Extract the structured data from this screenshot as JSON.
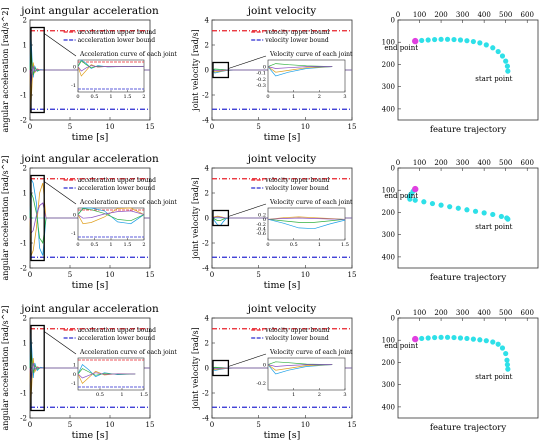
{
  "colors": {
    "upper": "#e8202a",
    "lower": "#2a2ad0",
    "joint": [
      "#1ea0e6",
      "#e0a020",
      "#30b040",
      "#8a50c0",
      "#606060",
      "#40c8c8"
    ],
    "feature": "#2ee0e8",
    "start_marker": "#e040e0",
    "axes_bg": "#ffffff"
  },
  "chart_data": [
    {
      "id": "acc1",
      "type": "line",
      "title": "joint angular acceleration",
      "xlabel": "time [s]",
      "ylabel": "angular acceleration [rad/s^2]",
      "xlim": [
        0,
        15
      ],
      "ylim": [
        -2,
        2
      ],
      "xticks": [
        "0",
        "5",
        "10",
        "15"
      ],
      "yticks": [
        "-2",
        "-1",
        "0",
        "1",
        "2"
      ],
      "bounds": {
        "upper": 1.57,
        "lower": -1.57
      },
      "legend": [
        "acceleration upper bound",
        "acceleration lower bound"
      ],
      "inset_label": "Acceleration curve of each joint",
      "inset_xticks": [
        "0",
        "0.5",
        "1",
        "1.5",
        "2"
      ],
      "inset_yticks": [
        "0",
        "-1"
      ],
      "series": [
        {
          "x": [
            0,
            0.1,
            0.25,
            0.4,
            0.6,
            0.9,
            1.3,
            2,
            3,
            15
          ],
          "y": [
            0,
            1.5,
            0.5,
            -0.3,
            0.15,
            -0.05,
            0.02,
            0,
            0,
            0
          ]
        },
        {
          "x": [
            0,
            0.1,
            0.25,
            0.4,
            0.6,
            0.9,
            1.3,
            2,
            3,
            15
          ],
          "y": [
            0,
            -1.5,
            -0.6,
            0.3,
            -0.1,
            0.05,
            0,
            0,
            0,
            0
          ]
        },
        {
          "x": [
            0,
            0.1,
            0.25,
            0.4,
            0.6,
            0.9,
            1.3,
            2,
            3,
            15
          ],
          "y": [
            0,
            0.9,
            0.3,
            -0.2,
            0.08,
            -0.03,
            0,
            0,
            0,
            0
          ]
        },
        {
          "x": [
            0,
            0.1,
            0.25,
            0.4,
            0.6,
            0.9,
            1.3,
            2,
            3,
            15
          ],
          "y": [
            0,
            -0.7,
            -0.2,
            0.15,
            -0.05,
            0.02,
            0,
            0,
            0,
            0
          ]
        }
      ]
    },
    {
      "id": "vel1",
      "type": "line",
      "title": "joint velocity",
      "xlabel": "time [s]",
      "ylabel": "joint velocity [rad/s]",
      "xlim": [
        0,
        15
      ],
      "ylim": [
        -4,
        4
      ],
      "xticks": [
        "0",
        "5",
        "10",
        "15"
      ],
      "yticks": [
        "-4",
        "-2",
        "0",
        "2",
        "4"
      ],
      "bounds": {
        "upper": 3.14,
        "lower": -3.14
      },
      "legend": [
        "velocity upper bound",
        "velocity lower bound"
      ],
      "inset_label": "Velocity curve of each joint",
      "inset_xticks": [
        "0",
        "1",
        "2",
        "3"
      ],
      "inset_yticks": [
        "0",
        "-0.1",
        "-0.2",
        "-0.3"
      ],
      "series": [
        {
          "x": [
            0,
            0.3,
            0.8,
            1.5,
            2.5,
            4,
            15
          ],
          "y": [
            0,
            -0.25,
            -0.15,
            -0.05,
            0,
            0,
            0
          ]
        },
        {
          "x": [
            0,
            0.3,
            0.8,
            1.5,
            2.5,
            4,
            15
          ],
          "y": [
            0,
            -0.15,
            -0.1,
            -0.03,
            0,
            0,
            0
          ]
        },
        {
          "x": [
            0,
            0.3,
            0.8,
            1.5,
            2.5,
            4,
            15
          ],
          "y": [
            0,
            0.08,
            0.05,
            0.02,
            0,
            0,
            0
          ]
        },
        {
          "x": [
            0,
            0.3,
            0.8,
            1.5,
            2.5,
            4,
            15
          ],
          "y": [
            0,
            -0.05,
            -0.03,
            0,
            0,
            0,
            0
          ]
        }
      ]
    },
    {
      "id": "feat1",
      "type": "scatter",
      "title": "",
      "xlabel": "feature trajectory",
      "ylabel": "",
      "xlim": [
        0,
        650
      ],
      "ylim": [
        0,
        450
      ],
      "y_inverted": true,
      "xticks": [
        "0",
        "100",
        "200",
        "300",
        "400",
        "500",
        "600"
      ],
      "yticks": [
        "0",
        "100",
        "200",
        "300",
        "400"
      ],
      "annotations": [
        "end point",
        "start point"
      ],
      "end_point": [
        80,
        95
      ],
      "start_point": [
        510,
        230
      ],
      "points": [
        [
          80,
          95
        ],
        [
          110,
          92
        ],
        [
          140,
          90
        ],
        [
          170,
          88
        ],
        [
          200,
          87
        ],
        [
          230,
          87
        ],
        [
          260,
          88
        ],
        [
          290,
          90
        ],
        [
          320,
          93
        ],
        [
          350,
          97
        ],
        [
          380,
          103
        ],
        [
          410,
          112
        ],
        [
          440,
          125
        ],
        [
          465,
          142
        ],
        [
          485,
          162
        ],
        [
          500,
          185
        ],
        [
          508,
          208
        ],
        [
          510,
          230
        ]
      ]
    },
    {
      "id": "acc2",
      "type": "line",
      "title": "joint angular acceleration",
      "xlabel": "time [s]",
      "ylabel": "angular acceleration [rad/s^2]",
      "xlim": [
        0,
        15
      ],
      "ylim": [
        -2,
        2
      ],
      "xticks": [
        "0",
        "5",
        "10",
        "15"
      ],
      "yticks": [
        "-2",
        "-1",
        "0",
        "1",
        "2"
      ],
      "bounds": {
        "upper": 1.57,
        "lower": -1.57
      },
      "legend": [
        "acceleration upper bound",
        "acceleration lower bound"
      ],
      "inset_label": "Acceleration curve of each joint",
      "inset_xticks": [
        "0",
        "0.5",
        "1",
        "1.5",
        "2"
      ],
      "inset_yticks": [
        "0",
        "-1"
      ],
      "series": [
        {
          "x": [
            0,
            0.15,
            0.4,
            0.8,
            1.2,
            1.6,
            2,
            3,
            15
          ],
          "y": [
            0,
            1.55,
            1.4,
            0.6,
            -1.2,
            -1.5,
            0,
            0,
            0
          ]
        },
        {
          "x": [
            0,
            0.15,
            0.4,
            0.8,
            1.2,
            1.6,
            2,
            3,
            15
          ],
          "y": [
            0,
            -1.5,
            -1.3,
            -0.4,
            1.0,
            1.4,
            0,
            0,
            0
          ]
        },
        {
          "x": [
            0,
            0.15,
            0.4,
            0.8,
            1.2,
            1.6,
            2,
            3,
            15
          ],
          "y": [
            0,
            1.0,
            0.8,
            0.2,
            -0.8,
            -1.0,
            0,
            0,
            0
          ]
        },
        {
          "x": [
            0,
            0.15,
            0.4,
            0.8,
            1.2,
            1.6,
            2,
            3,
            15
          ],
          "y": [
            0,
            -0.6,
            -0.5,
            0.1,
            0.5,
            0.6,
            0,
            0,
            0
          ]
        }
      ]
    },
    {
      "id": "vel2",
      "type": "line",
      "title": "joint velocity",
      "xlabel": "time [s]",
      "ylabel": "joint velocity [rad/s]",
      "xlim": [
        0,
        15
      ],
      "ylim": [
        -4,
        4
      ],
      "xticks": [
        "0",
        "5",
        "10",
        "15"
      ],
      "yticks": [
        "-4",
        "-2",
        "0",
        "2",
        "4"
      ],
      "bounds": {
        "upper": 3.14,
        "lower": -3.14
      },
      "legend": [
        "velocity upper bound",
        "velocity lower bound"
      ],
      "inset_label": "Velocity curve of each joint",
      "inset_xticks": [
        "0",
        "0.5",
        "1",
        "1.5"
      ],
      "inset_yticks": [
        "0.2",
        "0",
        "-0.2",
        "-0.4",
        "-0.6"
      ],
      "series": [
        {
          "x": [
            0,
            0.3,
            0.6,
            0.9,
            1.2,
            1.5,
            2,
            15
          ],
          "y": [
            0,
            -0.25,
            -0.55,
            -0.6,
            -0.3,
            -0.05,
            0,
            0
          ]
        },
        {
          "x": [
            0,
            0.3,
            0.6,
            0.9,
            1.2,
            1.5,
            2,
            15
          ],
          "y": [
            0,
            0.1,
            0.15,
            0.1,
            0.05,
            0,
            0,
            0
          ]
        },
        {
          "x": [
            0,
            0.3,
            0.6,
            0.9,
            1.2,
            1.5,
            2,
            15
          ],
          "y": [
            0,
            -0.1,
            -0.2,
            -0.2,
            -0.1,
            0,
            0,
            0
          ]
        },
        {
          "x": [
            0,
            0.3,
            0.6,
            0.9,
            1.2,
            1.5,
            2,
            15
          ],
          "y": [
            0,
            0.05,
            0.08,
            0.05,
            0.02,
            0,
            0,
            0
          ]
        }
      ]
    },
    {
      "id": "feat2",
      "type": "scatter",
      "title": "",
      "xlabel": "feature trajectory",
      "ylabel": "",
      "xlim": [
        0,
        650
      ],
      "ylim": [
        0,
        450
      ],
      "y_inverted": true,
      "xticks": [
        "0",
        "100",
        "200",
        "300",
        "400",
        "500",
        "600"
      ],
      "yticks": [
        "0",
        "100",
        "200",
        "300",
        "400"
      ],
      "annotations": [
        "end point",
        "start point"
      ],
      "end_point": [
        80,
        95
      ],
      "start_point": [
        510,
        230
      ],
      "points": [
        [
          80,
          95
        ],
        [
          70,
          105
        ],
        [
          60,
          118
        ],
        [
          52,
          130
        ],
        [
          55,
          140
        ],
        [
          80,
          145
        ],
        [
          120,
          152
        ],
        [
          160,
          160
        ],
        [
          200,
          167
        ],
        [
          240,
          174
        ],
        [
          280,
          181
        ],
        [
          320,
          188
        ],
        [
          360,
          195
        ],
        [
          400,
          202
        ],
        [
          440,
          209
        ],
        [
          480,
          218
        ],
        [
          505,
          225
        ],
        [
          510,
          230
        ]
      ]
    },
    {
      "id": "acc3",
      "type": "line",
      "title": "joint angular acceleration",
      "xlabel": "time [s]",
      "ylabel": "angular acceleration [rad/s^2]",
      "xlim": [
        0,
        15
      ],
      "ylim": [
        -2,
        2
      ],
      "xticks": [
        "0",
        "5",
        "10",
        "15"
      ],
      "yticks": [
        "-2",
        "-1",
        "0",
        "1",
        "2"
      ],
      "bounds": {
        "upper": 1.57,
        "lower": -1.57
      },
      "legend": [
        "acceleration upper bound",
        "acceleration lower bound"
      ],
      "inset_label": "Acceleration curve of each joint",
      "inset_xticks": [
        "0.5",
        "1",
        "1.5"
      ],
      "inset_yticks": [
        "1",
        "0",
        "-1"
      ],
      "series": [
        {
          "x": [
            0,
            0.1,
            0.25,
            0.4,
            0.6,
            0.9,
            1.3,
            2,
            15
          ],
          "y": [
            0,
            1.4,
            0.6,
            -0.4,
            0.2,
            -0.1,
            0.03,
            0,
            0
          ]
        },
        {
          "x": [
            0,
            0.1,
            0.25,
            0.4,
            0.6,
            0.9,
            1.3,
            2,
            15
          ],
          "y": [
            0,
            -1.4,
            -0.5,
            0.4,
            -0.15,
            0.05,
            0,
            0,
            0
          ]
        },
        {
          "x": [
            0,
            0.1,
            0.25,
            0.4,
            0.6,
            0.9,
            1.3,
            2,
            15
          ],
          "y": [
            0,
            0.8,
            0.3,
            -0.2,
            0.1,
            -0.04,
            0,
            0,
            0
          ]
        },
        {
          "x": [
            0,
            0.1,
            0.25,
            0.4,
            0.6,
            0.9,
            1.3,
            2,
            15
          ],
          "y": [
            0,
            -0.6,
            -0.2,
            0.2,
            -0.05,
            0.02,
            0,
            0,
            0
          ]
        }
      ]
    },
    {
      "id": "vel3",
      "type": "line",
      "title": "joint velocity",
      "xlabel": "time [s]",
      "ylabel": "joint velocity [rad/s]",
      "xlim": [
        0,
        15
      ],
      "ylim": [
        -4,
        4
      ],
      "xticks": [
        "0",
        "5",
        "10",
        "15"
      ],
      "yticks": [
        "-4",
        "-2",
        "0",
        "2",
        "4"
      ],
      "bounds": {
        "upper": 3.14,
        "lower": -3.14
      },
      "legend": [
        "velocity upper bound",
        "velocity lower bound"
      ],
      "inset_label": "Velocity curve of each joint",
      "inset_xticks": [
        "1",
        "2",
        "3"
      ],
      "inset_yticks": [
        "0",
        "-0.2"
      ],
      "series": [
        {
          "x": [
            0,
            0.3,
            0.8,
            1.5,
            2.5,
            4,
            15
          ],
          "y": [
            0,
            -0.2,
            -0.12,
            -0.04,
            0,
            0,
            0
          ]
        },
        {
          "x": [
            0,
            0.3,
            0.8,
            1.5,
            2.5,
            4,
            15
          ],
          "y": [
            0,
            -0.12,
            -0.08,
            -0.02,
            0,
            0,
            0
          ]
        },
        {
          "x": [
            0,
            0.3,
            0.8,
            1.5,
            2.5,
            4,
            15
          ],
          "y": [
            0,
            0.06,
            0.04,
            0.01,
            0,
            0,
            0
          ]
        },
        {
          "x": [
            0,
            0.3,
            0.8,
            1.5,
            2.5,
            4,
            15
          ],
          "y": [
            0,
            -0.04,
            -0.02,
            0,
            0,
            0,
            0
          ]
        }
      ]
    },
    {
      "id": "feat3",
      "type": "scatter",
      "title": "",
      "xlabel": "feature trajectory",
      "ylabel": "",
      "xlim": [
        0,
        650
      ],
      "ylim": [
        0,
        450
      ],
      "y_inverted": true,
      "xticks": [
        "0",
        "100",
        "200",
        "300",
        "400",
        "500",
        "600"
      ],
      "yticks": [
        "0",
        "100",
        "200",
        "300",
        "400"
      ],
      "annotations": [
        "end point",
        "start point"
      ],
      "end_point": [
        80,
        95
      ],
      "start_point": [
        510,
        230
      ],
      "points": [
        [
          80,
          95
        ],
        [
          110,
          92
        ],
        [
          140,
          90
        ],
        [
          170,
          88
        ],
        [
          200,
          87
        ],
        [
          230,
          87
        ],
        [
          260,
          88
        ],
        [
          290,
          90
        ],
        [
          320,
          92
        ],
        [
          350,
          95
        ],
        [
          380,
          98
        ],
        [
          410,
          102
        ],
        [
          440,
          108
        ],
        [
          465,
          118
        ],
        [
          485,
          135
        ],
        [
          500,
          160
        ],
        [
          506,
          190
        ],
        [
          508,
          210
        ],
        [
          510,
          230
        ]
      ]
    }
  ]
}
